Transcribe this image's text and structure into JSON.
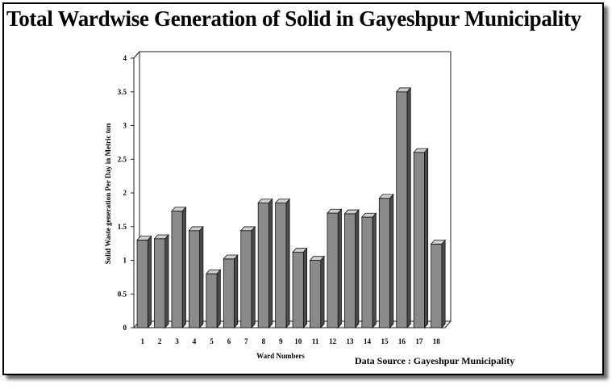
{
  "title": "Total Wardwise Generation of Solid in Gayeshpur Municipality",
  "source": "Data Source : Gayeshpur Municipality",
  "colors": {
    "bar_front": "#8a8a8a",
    "bar_top": "#cfcfcf",
    "bar_side": "#4a4a4a",
    "wall": "#ffffff"
  },
  "chart_data": {
    "type": "bar",
    "title": "Total Wardwise Generation of Solid in Gayeshpur Municipality",
    "xlabel": "Ward Numbers",
    "ylabel": "Solid Waste generation Per Day in Metric  ton",
    "ylim": [
      0,
      4
    ],
    "yticks": [
      "0",
      "0.5",
      "1",
      "1.5",
      "2",
      "2.5",
      "3",
      "3.5",
      "4"
    ],
    "grid": false,
    "categories": [
      "1",
      "2",
      "3",
      "4",
      "5",
      "6",
      "7",
      "8",
      "9",
      "10",
      "11",
      "12",
      "13",
      "14",
      "15",
      "16",
      "17",
      "18"
    ],
    "values": [
      1.3,
      1.32,
      1.73,
      1.44,
      0.8,
      1.02,
      1.44,
      1.85,
      1.85,
      1.12,
      1.0,
      1.7,
      1.69,
      1.64,
      1.92,
      3.5,
      2.6,
      1.24
    ]
  }
}
